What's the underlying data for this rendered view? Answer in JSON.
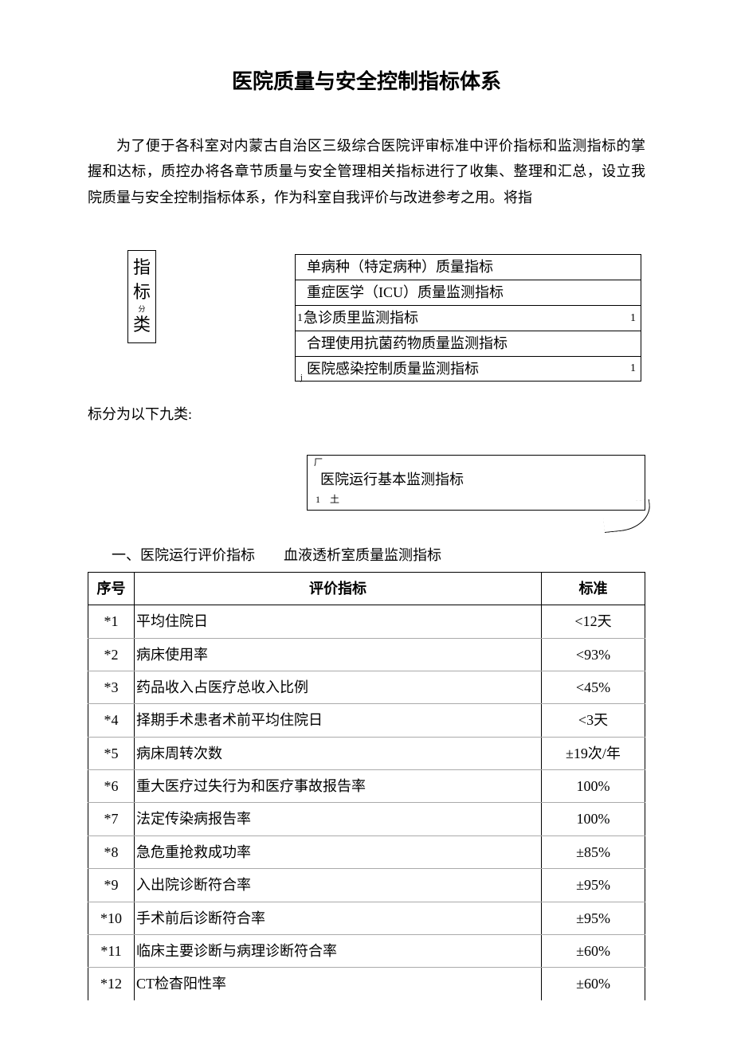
{
  "title": "医院质量与安全控制指标体系",
  "intro": "为了便于各科室对内蒙古自治区三级综合医院评审标准中评价指标和监测指标的掌握和达标，质控办将各章节质量与安全管理相关指标进行了收集、整理和汇总，设立我院质量与安全控制指标体系，作为科室自我评价与改进参考之用。将指",
  "vertLabel": {
    "c1": "指",
    "c2": "标",
    "csmall": "分",
    "c3": "类"
  },
  "categories": [
    {
      "text": "单病种（特定病种）质量指标",
      "numLeft": "",
      "numRight": ""
    },
    {
      "text": "重症医学（ICU）质量监测指标",
      "numLeft": "",
      "numRight": ""
    },
    {
      "text": "急诊质里监测指标",
      "numLeft": "1",
      "numRight": "1"
    },
    {
      "text": "合理使用抗菌药物质量监测指标",
      "numLeft": "",
      "numRight": ""
    },
    {
      "text": "医院感染控制质量监测指标",
      "numLeft": "",
      "numRight": "1",
      "tiny": "j"
    }
  ],
  "subtext": "标分为以下九类:",
  "lowerBox": {
    "topMark": "厂",
    "text": "医院运行基本监测指标",
    "botMark": "1　土"
  },
  "sectionHeading": "一、医院运行评价指标　　血液透析室质量监测指标",
  "table": {
    "headers": {
      "seq": "序号",
      "indicator": "评价指标",
      "standard": "标准"
    },
    "rows": [
      {
        "seq": "*1",
        "indicator": "平均住院日",
        "standard": "<12天"
      },
      {
        "seq": "*2",
        "indicator": "病床使用率",
        "standard": "<93%"
      },
      {
        "seq": "*3",
        "indicator": "药品收入占医疗总收入比例",
        "standard": "<45%"
      },
      {
        "seq": "*4",
        "indicator": "择期手术患者术前平均住院日",
        "standard": "<3天"
      },
      {
        "seq": "*5",
        "indicator": "病床周转次数",
        "standard": "±19次/年"
      },
      {
        "seq": "*6",
        "indicator": "重大医疗过失行为和医疗事故报告率",
        "standard": "100%"
      },
      {
        "seq": "*7",
        "indicator": "法定传染病报告率",
        "standard": "100%"
      },
      {
        "seq": "*8",
        "indicator": "急危重抢救成功率",
        "standard": "±85%"
      },
      {
        "seq": "*9",
        "indicator": "入出院诊断符合率",
        "standard": "±95%"
      },
      {
        "seq": "*10",
        "indicator": "手术前后诊断符合率",
        "standard": "±95%"
      },
      {
        "seq": "*11",
        "indicator": "临床主要诊断与病理诊断符合率",
        "standard": "±60%"
      },
      {
        "seq": "*12",
        "indicator": "CT检杳阳性率",
        "standard": "±60%"
      }
    ]
  }
}
